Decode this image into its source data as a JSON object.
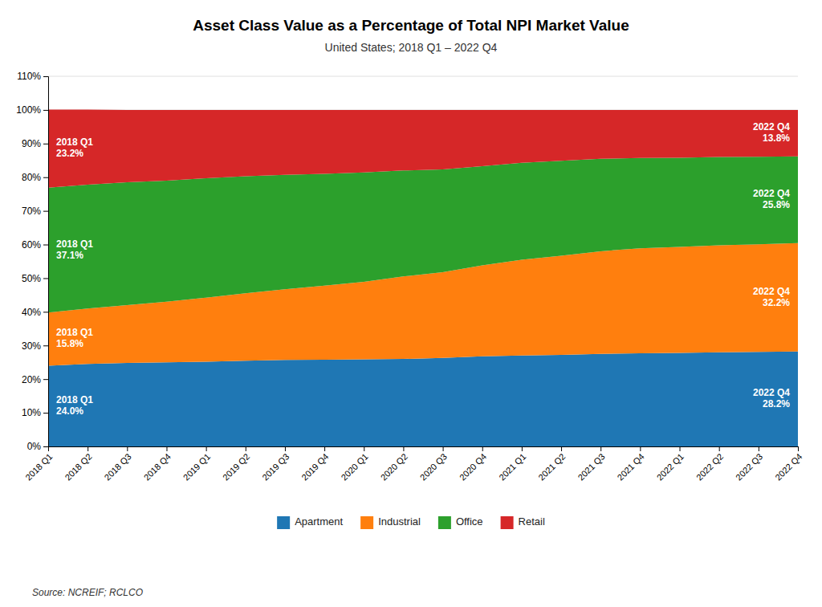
{
  "chart_data": {
    "type": "area",
    "stacked": true,
    "title": "Asset Class Value as a Percentage of Total NPI Market Value",
    "subtitle": "United States; 2018 Q1 – 2022 Q4",
    "source": "Source: NCREIF; RCLCO",
    "categories": [
      "2018 Q1",
      "2018 Q2",
      "2018 Q3",
      "2018 Q4",
      "2019 Q1",
      "2019 Q2",
      "2019 Q3",
      "2019 Q4",
      "2020 Q1",
      "2020 Q2",
      "2020 Q3",
      "2020 Q4",
      "2021 Q1",
      "2021 Q2",
      "2021 Q3",
      "2021 Q4",
      "2022 Q1",
      "2022 Q2",
      "2022 Q3",
      "2022 Q4"
    ],
    "series": [
      {
        "name": "Apartment",
        "color": "#1f77b4",
        "values": [
          24.0,
          24.5,
          24.8,
          25.0,
          25.2,
          25.5,
          25.7,
          25.8,
          25.9,
          26.0,
          26.3,
          26.8,
          27.0,
          27.2,
          27.5,
          27.7,
          27.8,
          28.0,
          28.1,
          28.2
        ]
      },
      {
        "name": "Industrial",
        "color": "#ff7f0e",
        "values": [
          15.8,
          16.5,
          17.2,
          18.0,
          19.0,
          20.0,
          21.0,
          22.0,
          23.0,
          24.5,
          25.5,
          27.0,
          28.5,
          29.5,
          30.5,
          31.2,
          31.5,
          31.8,
          32.0,
          32.2
        ]
      },
      {
        "name": "Office",
        "color": "#2ca02c",
        "values": [
          37.1,
          36.8,
          36.5,
          36.0,
          35.5,
          34.8,
          34.0,
          33.2,
          32.5,
          31.5,
          30.5,
          29.5,
          28.8,
          28.2,
          27.5,
          26.8,
          26.5,
          26.2,
          26.0,
          25.8
        ]
      },
      {
        "name": "Retail",
        "color": "#d62728",
        "values": [
          23.2,
          22.3,
          21.5,
          21.0,
          20.3,
          19.7,
          19.3,
          19.0,
          18.6,
          18.0,
          17.7,
          16.7,
          15.7,
          15.1,
          14.5,
          14.3,
          14.2,
          14.0,
          13.9,
          13.8
        ]
      }
    ],
    "annotations": [
      {
        "text": "2018 Q1\n24.0%",
        "series": "Apartment",
        "x": "2018 Q1"
      },
      {
        "text": "2018 Q1\n15.8%",
        "series": "Industrial",
        "x": "2018 Q1"
      },
      {
        "text": "2018 Q1\n37.1%",
        "series": "Office",
        "x": "2018 Q1"
      },
      {
        "text": "2018 Q1\n23.2%",
        "series": "Retail",
        "x": "2018 Q1"
      },
      {
        "text": "2022 Q4\n28.2%",
        "series": "Apartment",
        "x": "2022 Q4"
      },
      {
        "text": "2022 Q4\n32.2%",
        "series": "Industrial",
        "x": "2022 Q4"
      },
      {
        "text": "2022 Q4\n25.8%",
        "series": "Office",
        "x": "2022 Q4"
      },
      {
        "text": "2022 Q4\n13.8%",
        "series": "Retail",
        "x": "2022 Q4"
      }
    ],
    "ylim": [
      0,
      110
    ],
    "yticks": [
      {
        "value": 0,
        "label": "0%"
      },
      {
        "value": 10,
        "label": "10%"
      },
      {
        "value": 20,
        "label": "20%"
      },
      {
        "value": 30,
        "label": "30%"
      },
      {
        "value": 40,
        "label": "40%"
      },
      {
        "value": 50,
        "label": "50%"
      },
      {
        "value": 60,
        "label": "60%"
      },
      {
        "value": 70,
        "label": "70%"
      },
      {
        "value": 80,
        "label": "80%"
      },
      {
        "value": 90,
        "label": "90%"
      },
      {
        "value": 100,
        "label": "100%"
      },
      {
        "value": 110,
        "label": "110%"
      }
    ],
    "grid": true,
    "legend": "bottom"
  }
}
